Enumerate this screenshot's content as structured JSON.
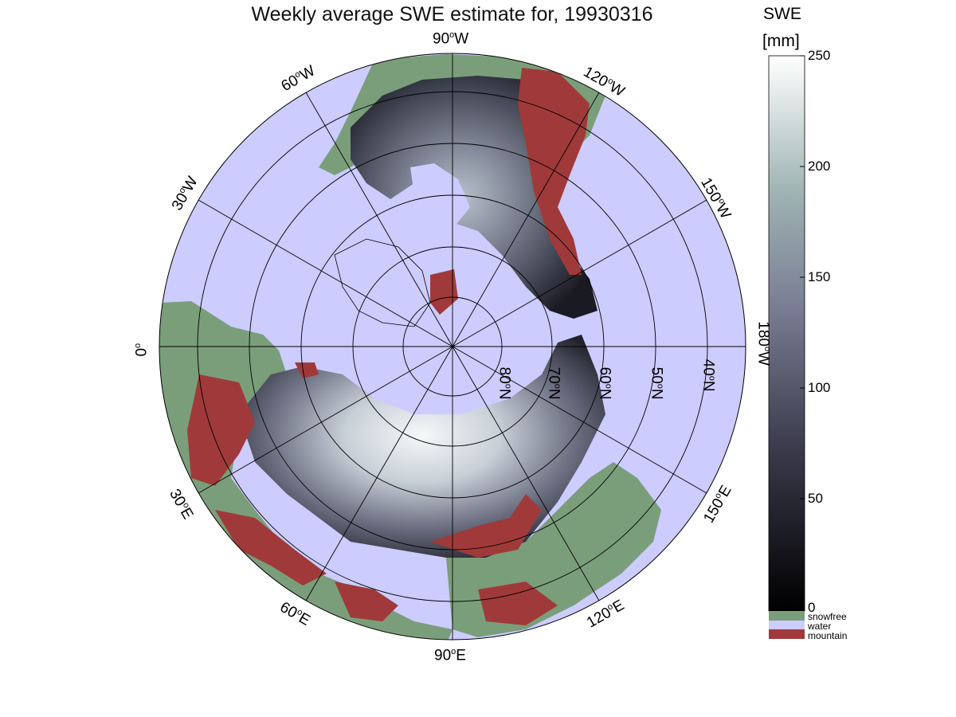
{
  "title": "Weekly average SWE estimate for, 19930316",
  "colorbar": {
    "title_line1": "SWE",
    "title_line2": "[mm]",
    "ticks": [
      "250",
      "200",
      "150",
      "100",
      "50",
      "0"
    ],
    "tick_values": [
      250,
      200,
      150,
      100,
      50,
      0
    ],
    "min": 0,
    "max": 250,
    "categories": [
      {
        "label": "snowfree",
        "color": "#7a9e7a"
      },
      {
        "label": "water",
        "color": "#ccccff"
      },
      {
        "label": "mountain",
        "color": "#a03a3a"
      }
    ]
  },
  "map": {
    "projection": "north polar stereographic",
    "water_color": "#ccccff",
    "snowfree_color": "#7a9e7a",
    "mountain_color": "#a03a3a",
    "longitude_labels": [
      {
        "deg": "90",
        "dir": "W"
      },
      {
        "deg": "120",
        "dir": "W"
      },
      {
        "deg": "60",
        "dir": "W"
      },
      {
        "deg": "150",
        "dir": "W"
      },
      {
        "deg": "30",
        "dir": "W"
      },
      {
        "deg": "180",
        "dir": "W"
      },
      {
        "deg": "0",
        "dir": ""
      },
      {
        "deg": "150",
        "dir": "E"
      },
      {
        "deg": "30",
        "dir": "E"
      },
      {
        "deg": "120",
        "dir": "E"
      },
      {
        "deg": "60",
        "dir": "E"
      },
      {
        "deg": "90",
        "dir": "E"
      }
    ],
    "latitude_labels": [
      {
        "deg": "80",
        "dir": "N"
      },
      {
        "deg": "70",
        "dir": "N"
      },
      {
        "deg": "60",
        "dir": "N"
      },
      {
        "deg": "50",
        "dir": "N"
      },
      {
        "deg": "40",
        "dir": "N"
      }
    ]
  }
}
